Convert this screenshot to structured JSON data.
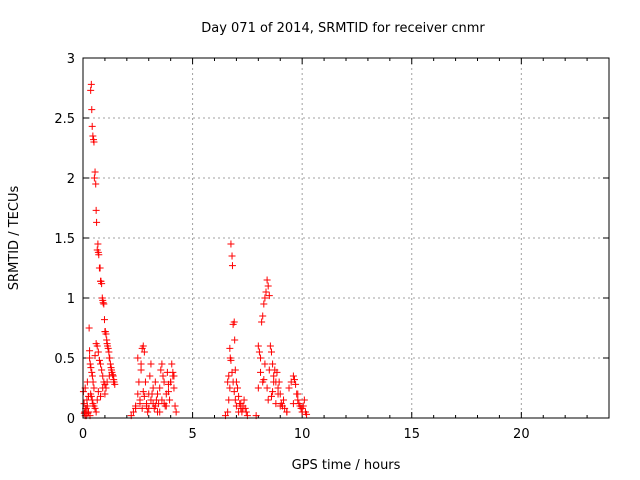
{
  "chart_data": {
    "type": "scatter",
    "title": "Day 071 of 2014, SRMTID for receiver cnmr",
    "xlabel": "GPS time / hours",
    "ylabel": "SRMTID / TECUs",
    "xlim": [
      0,
      24
    ],
    "ylim": [
      0,
      3
    ],
    "xticks": [
      0,
      5,
      10,
      15,
      20
    ],
    "yticks": [
      0,
      0.5,
      1,
      1.5,
      2,
      2.5,
      3
    ],
    "xtick_labels": [
      "0",
      "5",
      "10",
      "15",
      "20"
    ],
    "ytick_labels": [
      "0",
      "0.5",
      "1",
      "1.5",
      "2",
      "2.5",
      "3"
    ],
    "grid": true,
    "marker": "+",
    "color": "#ff0000",
    "series": [
      {
        "x": [
          0.02,
          0.05,
          0.08,
          0.1,
          0.12,
          0.15,
          0.18,
          0.2,
          0.22,
          0.25,
          0.28,
          0.3,
          0.32,
          0.35,
          0.38,
          0.4,
          0.42,
          0.45,
          0.48,
          0.5,
          0.52,
          0.55,
          0.58,
          0.6,
          0.62,
          0.65,
          0.68,
          0.7,
          0.72,
          0.75,
          0.78,
          0.8,
          0.82,
          0.85,
          0.88,
          0.9,
          0.92,
          0.95,
          0.98,
          1.0,
          1.02,
          1.05,
          1.08,
          1.1,
          1.12,
          1.15,
          1.18,
          1.2,
          1.22,
          1.25,
          1.28,
          1.3,
          1.32,
          1.35,
          1.38,
          1.4,
          1.42,
          1.45,
          0.3,
          0.33,
          0.36,
          0.4,
          0.43,
          0.46,
          0.5,
          0.55,
          0.6,
          0.65,
          0.7,
          0.75,
          0.8,
          0.85,
          0.9,
          0.95,
          1.0,
          1.05,
          0.35,
          0.38,
          0.42,
          0.45,
          0.5,
          0.55,
          0.6,
          0.65,
          0.7,
          0.8,
          0.9,
          1.0,
          1.1,
          1.2,
          1.3,
          1.4,
          0.2,
          0.25,
          0.15,
          0.1,
          0.06
        ],
        "y": [
          0.22,
          0.12,
          0.05,
          0.25,
          0.08,
          0.02,
          0.15,
          0.3,
          0.04,
          0.18,
          0.75,
          0.5,
          0.02,
          2.73,
          2.78,
          2.57,
          2.43,
          2.35,
          2.32,
          2.3,
          2.0,
          2.05,
          1.95,
          1.73,
          1.63,
          1.4,
          1.45,
          1.38,
          1.36,
          1.25,
          1.25,
          1.14,
          1.14,
          1.12,
          1.0,
          0.98,
          0.96,
          0.95,
          0.82,
          0.72,
          0.72,
          0.7,
          0.65,
          0.62,
          0.6,
          0.58,
          0.55,
          0.5,
          0.5,
          0.45,
          0.42,
          0.4,
          0.38,
          0.36,
          0.35,
          0.32,
          0.3,
          0.28,
          0.56,
          0.45,
          0.42,
          0.38,
          0.35,
          0.3,
          0.25,
          0.52,
          0.62,
          0.6,
          0.55,
          0.48,
          0.45,
          0.4,
          0.35,
          0.3,
          0.28,
          0.25,
          0.2,
          0.18,
          0.15,
          0.12,
          0.1,
          0.08,
          0.05,
          0.15,
          0.22,
          0.18,
          0.25,
          0.2,
          0.3,
          0.35,
          0.4,
          0.3,
          0.1,
          0.05,
          0.08,
          0.02,
          0.04
        ]
      },
      {
        "x": [
          2.2,
          2.3,
          2.4,
          2.5,
          2.55,
          2.6,
          2.65,
          2.7,
          2.75,
          2.8,
          2.85,
          2.9,
          2.95,
          3.0,
          3.05,
          3.1,
          3.15,
          3.2,
          3.25,
          3.3,
          3.35,
          3.4,
          3.45,
          3.5,
          3.55,
          3.6,
          3.65,
          3.7,
          3.75,
          3.8,
          3.85,
          3.9,
          3.95,
          4.0,
          4.05,
          4.1,
          4.15,
          4.2,
          4.25,
          2.5,
          2.6,
          2.7,
          2.8,
          3.0,
          3.2,
          3.4,
          3.6,
          3.8,
          4.0,
          4.1,
          2.65,
          2.75,
          3.1,
          3.3,
          3.5,
          3.7,
          3.9,
          4.15,
          2.4,
          2.9
        ],
        "y": [
          0.02,
          0.05,
          0.1,
          0.2,
          0.3,
          0.15,
          0.4,
          0.58,
          0.6,
          0.55,
          0.3,
          0.1,
          0.05,
          0.08,
          0.35,
          0.45,
          0.2,
          0.12,
          0.08,
          0.3,
          0.15,
          0.05,
          0.12,
          0.25,
          0.4,
          0.45,
          0.35,
          0.3,
          0.1,
          0.2,
          0.38,
          0.22,
          0.15,
          0.3,
          0.45,
          0.35,
          0.25,
          0.1,
          0.05,
          0.5,
          0.12,
          0.08,
          0.18,
          0.2,
          0.25,
          0.2,
          0.15,
          0.1,
          0.3,
          0.38,
          0.45,
          0.22,
          0.15,
          0.1,
          0.05,
          0.12,
          0.28,
          0.35,
          0.08,
          0.12
        ]
      },
      {
        "x": [
          6.5,
          6.6,
          6.65,
          6.7,
          6.72,
          6.75,
          6.8,
          6.82,
          6.85,
          6.9,
          6.92,
          6.95,
          7.0,
          7.05,
          7.1,
          7.15,
          7.2,
          7.25,
          7.3,
          7.35,
          7.4,
          7.45,
          7.5,
          6.7,
          6.75,
          6.8,
          6.85,
          6.9,
          6.95,
          7.0,
          7.1,
          7.2,
          7.3,
          6.6,
          6.65
        ],
        "y": [
          0.02,
          0.05,
          0.15,
          0.25,
          0.5,
          1.45,
          1.35,
          1.27,
          0.78,
          0.8,
          0.65,
          0.4,
          0.3,
          0.25,
          0.18,
          0.12,
          0.08,
          0.05,
          0.1,
          0.15,
          0.08,
          0.05,
          0.02,
          0.58,
          0.48,
          0.38,
          0.3,
          0.22,
          0.15,
          0.1,
          0.05,
          0.12,
          0.08,
          0.3,
          0.35
        ]
      },
      {
        "x": [
          7.9,
          8.0,
          8.05,
          8.1,
          8.15,
          8.2,
          8.25,
          8.3,
          8.35,
          8.4,
          8.45,
          8.5,
          8.55,
          8.6,
          8.65,
          8.7,
          8.75,
          8.8,
          8.85,
          8.9,
          8.95,
          9.0,
          9.05,
          9.1,
          9.15,
          9.2,
          9.3,
          9.4,
          9.5,
          9.6,
          9.65,
          9.7,
          9.75,
          9.8,
          9.85,
          9.9,
          9.95,
          10.0,
          10.05,
          10.1,
          10.15,
          10.2,
          8.1,
          8.2,
          8.3,
          8.4,
          8.5,
          8.6,
          8.7,
          8.8,
          8.9,
          9.0,
          9.3,
          9.6,
          9.8,
          10.0,
          8.0,
          8.25,
          8.45,
          8.65
        ],
        "y": [
          0.02,
          0.6,
          0.55,
          0.5,
          0.8,
          0.85,
          0.95,
          1.0,
          1.05,
          1.15,
          1.1,
          1.02,
          0.6,
          0.55,
          0.45,
          0.35,
          0.4,
          0.3,
          0.38,
          0.25,
          0.3,
          0.2,
          0.12,
          0.1,
          0.15,
          0.08,
          0.05,
          0.25,
          0.3,
          0.35,
          0.32,
          0.28,
          0.2,
          0.15,
          0.12,
          0.1,
          0.08,
          0.05,
          0.1,
          0.15,
          0.05,
          0.03,
          0.38,
          0.3,
          0.45,
          0.25,
          0.4,
          0.18,
          0.3,
          0.12,
          0.2,
          0.1,
          0.05,
          0.12,
          0.2,
          0.08,
          0.25,
          0.32,
          0.15,
          0.22
        ]
      }
    ]
  }
}
